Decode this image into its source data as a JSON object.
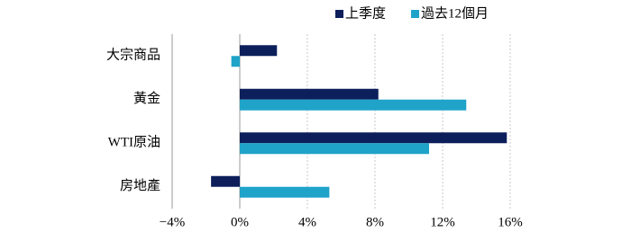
{
  "chart_data": {
    "type": "hbar",
    "categories": [
      "大宗商品",
      "黃金",
      "WTI原油",
      "房地產"
    ],
    "series": [
      {
        "name": "上季度",
        "color": "#0c1f5b",
        "values": [
          2.2,
          8.2,
          15.8,
          -1.7
        ]
      },
      {
        "name": "過去12個月",
        "color": "#1fa3c9",
        "values": [
          -0.5,
          13.4,
          11.2,
          5.3
        ]
      }
    ],
    "xlim": [
      -4,
      16
    ],
    "xticks": [
      {
        "value": -4,
        "label": "−4%"
      },
      {
        "value": 0,
        "label": "0%"
      },
      {
        "value": 4,
        "label": "4%"
      },
      {
        "value": 8,
        "label": "8%"
      },
      {
        "value": 12,
        "label": "12%"
      },
      {
        "value": 16,
        "label": "16%"
      }
    ],
    "grid": true
  }
}
